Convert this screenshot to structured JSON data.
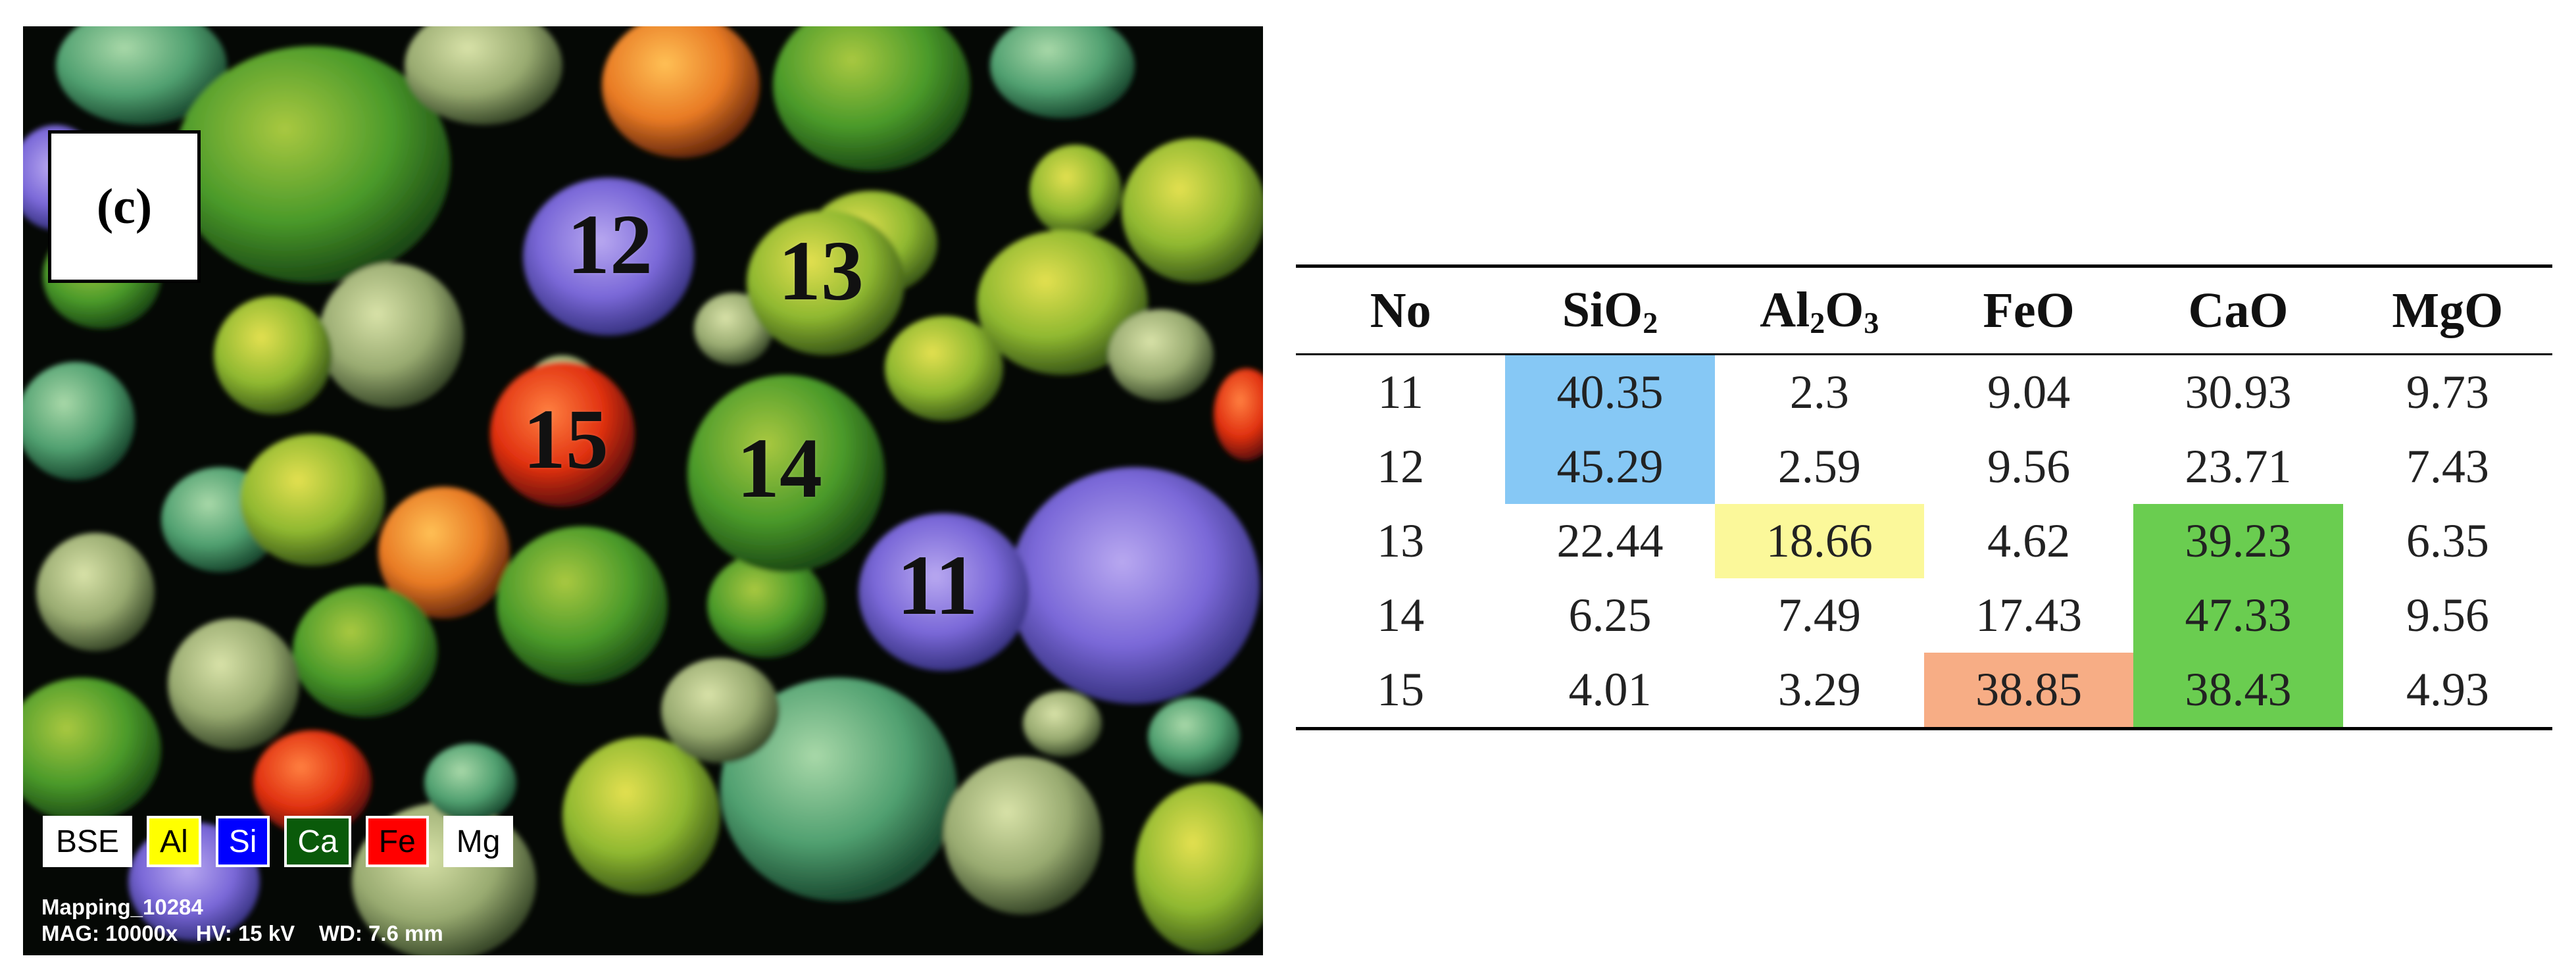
{
  "micrograph": {
    "panel_label": "(c)",
    "particle_labels": [
      "12",
      "13",
      "15",
      "14",
      "11"
    ],
    "legend": [
      {
        "label": "BSE",
        "bg": "#ffffff",
        "fg": "#000000"
      },
      {
        "label": "Al",
        "bg": "#ffff00",
        "fg": "#000000"
      },
      {
        "label": "Si",
        "bg": "#0000ff",
        "fg": "#ffffff"
      },
      {
        "label": "Ca",
        "bg": "#0a5a0a",
        "fg": "#ffffff"
      },
      {
        "label": "Fe",
        "bg": "#ff0000",
        "fg": "#000000"
      },
      {
        "label": "Mg",
        "bg": "#ffffff",
        "fg": "#000000"
      }
    ],
    "mapping_id": "Mapping_10284",
    "acquisition": "MAG: 10000x   HV: 15 kV    WD: 7.6 mm"
  },
  "table": {
    "headers": [
      {
        "base": "No",
        "sub": []
      },
      {
        "base": "SiO",
        "sub": [
          "2"
        ]
      },
      {
        "base": "Al",
        "sub": [
          "2",
          "3"
        ],
        "mid": "O"
      },
      {
        "base": "FeO",
        "sub": []
      },
      {
        "base": "CaO",
        "sub": []
      },
      {
        "base": "MgO",
        "sub": []
      }
    ],
    "rows": [
      [
        "11",
        "40.35",
        "2.3",
        "9.04",
        "30.93",
        "9.73"
      ],
      [
        "12",
        "45.29",
        "2.59",
        "9.56",
        "23.71",
        "7.43"
      ],
      [
        "13",
        "22.44",
        "18.66",
        "4.62",
        "39.23",
        "6.35"
      ],
      [
        "14",
        "6.25",
        "7.49",
        "17.43",
        "47.33",
        "9.56"
      ],
      [
        "15",
        "4.01",
        "3.29",
        "38.85",
        "38.43",
        "4.93"
      ]
    ],
    "highlight_colors": {
      "SiO2": "#86c8f5",
      "Al2O3": "#fbf89a",
      "FeO": "#f7ad85",
      "CaO": "#6acd50"
    },
    "highlights": [
      {
        "row": 0,
        "col": 1,
        "color": "SiO2"
      },
      {
        "row": 1,
        "col": 1,
        "color": "SiO2"
      },
      {
        "row": 2,
        "col": 2,
        "color": "Al2O3"
      },
      {
        "row": 2,
        "col": 4,
        "color": "CaO"
      },
      {
        "row": 3,
        "col": 4,
        "color": "CaO"
      },
      {
        "row": 4,
        "col": 3,
        "color": "FeO"
      },
      {
        "row": 4,
        "col": 4,
        "color": "CaO"
      }
    ]
  }
}
